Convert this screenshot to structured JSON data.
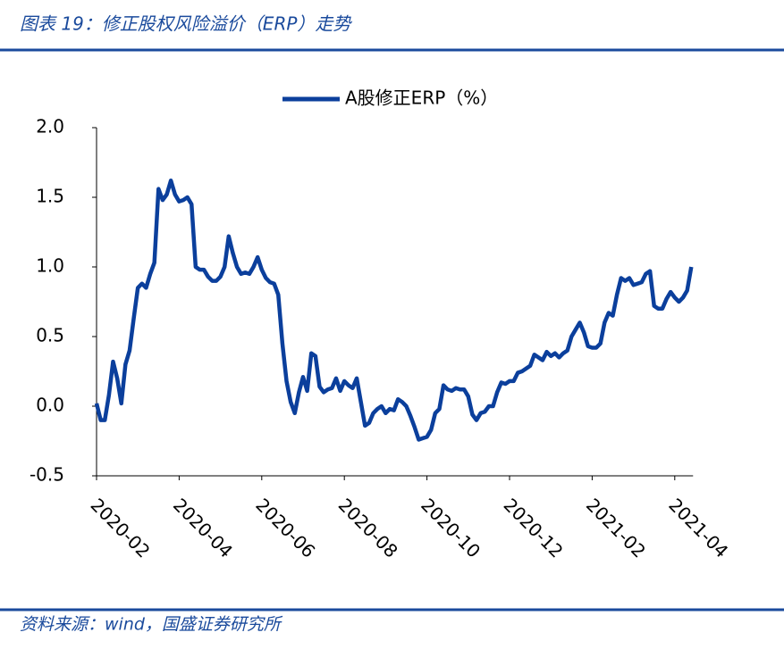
{
  "chart_data": {
    "type": "line",
    "title": "图表 19：修正股权风险溢价（ERP）走势",
    "source": "资料来源：wind，国盛证券研究所",
    "categories": [
      "2020-02",
      null,
      null,
      null,
      null,
      null,
      null,
      null,
      null,
      null,
      null,
      null,
      null,
      null,
      null,
      null,
      null,
      null,
      null,
      null,
      "2020-04",
      null,
      null,
      null,
      null,
      null,
      null,
      null,
      null,
      null,
      null,
      null,
      null,
      null,
      null,
      null,
      null,
      null,
      null,
      null,
      "2020-06",
      null,
      null,
      null,
      null,
      null,
      null,
      null,
      null,
      null,
      null,
      null,
      null,
      null,
      null,
      null,
      null,
      null,
      null,
      null,
      "2020-08",
      null,
      null,
      null,
      null,
      null,
      null,
      null,
      null,
      null,
      null,
      null,
      null,
      null,
      null,
      null,
      null,
      null,
      null,
      null,
      "2020-10",
      null,
      null,
      null,
      null,
      null,
      null,
      null,
      null,
      null,
      null,
      null,
      null,
      null,
      null,
      null,
      null,
      null,
      null,
      null,
      "2020-12",
      null,
      null,
      null,
      null,
      null,
      null,
      null,
      null,
      null,
      null,
      null,
      null,
      null,
      null,
      null,
      null,
      null,
      null,
      null,
      "2021-02",
      null,
      null,
      null,
      null,
      null,
      null,
      null,
      null,
      null,
      null,
      null,
      null,
      null,
      null,
      null,
      null,
      null,
      null,
      null,
      "2021-04",
      null,
      null,
      null,
      null
    ],
    "series": [
      {
        "name": "A股修正ERP（%）",
        "color": "#0b3f9c",
        "values": [
          0.02,
          -0.1,
          -0.1,
          0.08,
          0.32,
          0.2,
          0.02,
          0.3,
          0.4,
          0.63,
          0.85,
          0.88,
          0.85,
          0.95,
          1.03,
          1.56,
          1.48,
          1.52,
          1.62,
          1.52,
          1.47,
          1.48,
          1.5,
          1.45,
          1.0,
          0.98,
          0.98,
          0.93,
          0.9,
          0.9,
          0.93,
          1.0,
          1.22,
          1.1,
          1.0,
          0.95,
          0.96,
          0.95,
          1.0,
          1.07,
          0.98,
          0.92,
          0.89,
          0.88,
          0.8,
          0.45,
          0.18,
          0.03,
          -0.05,
          0.1,
          0.21,
          0.11,
          0.38,
          0.36,
          0.14,
          0.1,
          0.12,
          0.13,
          0.2,
          0.11,
          0.18,
          0.15,
          0.13,
          0.2,
          0.03,
          -0.14,
          -0.12,
          -0.05,
          -0.02,
          0.0,
          -0.05,
          -0.02,
          -0.03,
          0.05,
          0.03,
          0.0,
          -0.07,
          -0.15,
          -0.24,
          -0.23,
          -0.22,
          -0.17,
          -0.05,
          -0.02,
          0.15,
          0.12,
          0.11,
          0.13,
          0.12,
          0.12,
          0.07,
          -0.06,
          -0.1,
          -0.05,
          -0.04,
          0.0,
          0.0,
          0.1,
          0.17,
          0.16,
          0.18,
          0.18,
          0.24,
          0.25,
          0.27,
          0.29,
          0.37,
          0.35,
          0.33,
          0.39,
          0.36,
          0.38,
          0.35,
          0.38,
          0.4,
          0.5,
          0.55,
          0.6,
          0.53,
          0.43,
          0.42,
          0.42,
          0.45,
          0.6,
          0.67,
          0.65,
          0.8,
          0.92,
          0.9,
          0.92,
          0.87,
          0.88,
          0.89,
          0.95,
          0.97,
          0.72,
          0.7,
          0.7,
          0.77,
          0.82,
          0.78,
          0.75,
          0.78,
          0.83,
          1.0
        ]
      }
    ],
    "ylim": [
      -0.5,
      2
    ],
    "yticks": [
      -0.5,
      {
        "value": 0,
        "label": "0.0"
      },
      0.5,
      {
        "value": 1,
        "label": "1.0"
      },
      1.5,
      {
        "value": 2,
        "label": "2.0"
      }
    ],
    "legend": "top"
  }
}
